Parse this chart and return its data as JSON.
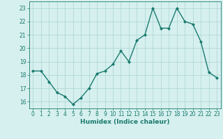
{
  "x": [
    0,
    1,
    2,
    3,
    4,
    5,
    6,
    7,
    8,
    9,
    10,
    11,
    12,
    13,
    14,
    15,
    16,
    17,
    18,
    19,
    20,
    21,
    22,
    23
  ],
  "y": [
    18.3,
    18.3,
    17.5,
    16.7,
    16.4,
    15.8,
    16.3,
    17.0,
    18.1,
    18.3,
    18.8,
    19.8,
    19.0,
    20.6,
    21.0,
    23.0,
    21.5,
    21.5,
    23.0,
    22.0,
    21.8,
    20.5,
    18.2,
    17.8
  ],
  "line_color": "#1a7a6e",
  "marker": "D",
  "marker_size": 2.0,
  "bg_color": "#d6f0ef",
  "grid_color": "#b0d8d5",
  "xlabel": "Humidex (Indice chaleur)",
  "ylim": [
    15.5,
    23.5
  ],
  "xlim": [
    -0.5,
    23.5
  ],
  "yticks": [
    16,
    17,
    18,
    19,
    20,
    21,
    22,
    23
  ],
  "xticks": [
    0,
    1,
    2,
    3,
    4,
    5,
    6,
    7,
    8,
    9,
    10,
    11,
    12,
    13,
    14,
    15,
    16,
    17,
    18,
    19,
    20,
    21,
    22,
    23
  ],
  "tick_color": "#1a7a6e",
  "label_color": "#1a7a6e",
  "xlabel_fontsize": 6.5,
  "tick_fontsize": 5.5,
  "line_width": 1.0
}
